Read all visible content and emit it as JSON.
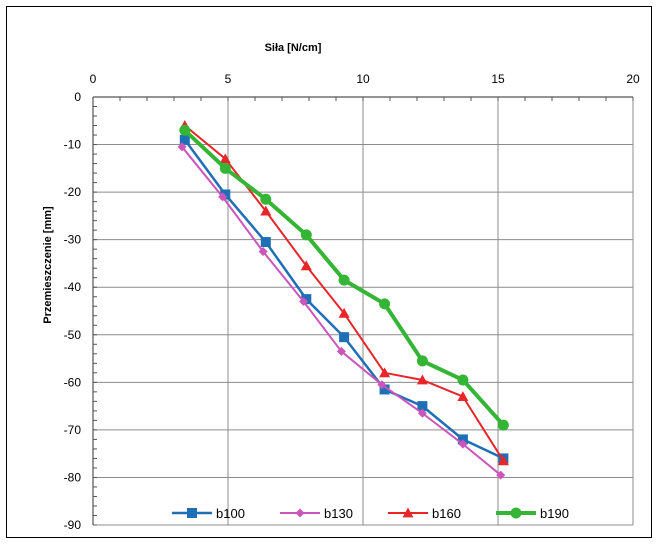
{
  "chart_data": {
    "type": "line",
    "title": "",
    "xlabel": "Siła [N/cm]",
    "ylabel": "Przemieszczenie [mm]",
    "xlim": [
      0,
      20
    ],
    "ylim": [
      -90,
      0
    ],
    "x_ticks": [
      0,
      5,
      10,
      15,
      20
    ],
    "y_ticks": [
      0,
      -10,
      -20,
      -30,
      -40,
      -50,
      -60,
      -70,
      -80,
      -90
    ],
    "x_axis_position": "top",
    "grid": true,
    "legend_position": "bottom",
    "series": [
      {
        "name": "b100",
        "color": "#1f6fb6",
        "marker": "square",
        "x": [
          3.4,
          4.9,
          6.4,
          7.9,
          9.3,
          10.8,
          12.2,
          13.7,
          15.2
        ],
        "y": [
          -9,
          -20.5,
          -30.5,
          -42.5,
          -50.5,
          -61.5,
          -65,
          -72,
          -76
        ]
      },
      {
        "name": "b130",
        "color": "#cc55bb",
        "marker": "diamond",
        "x": [
          3.3,
          4.8,
          6.3,
          7.8,
          9.2,
          10.7,
          12.2,
          13.7,
          15.1
        ],
        "y": [
          -10.5,
          -21,
          -32.5,
          -43,
          -53.5,
          -60.5,
          -66.5,
          -73,
          -79.5
        ]
      },
      {
        "name": "b160",
        "color": "#e8262a",
        "marker": "triangle",
        "x": [
          3.4,
          4.9,
          6.4,
          7.9,
          9.3,
          10.8,
          12.2,
          13.7,
          15.2
        ],
        "y": [
          -6,
          -13,
          -24,
          -35.5,
          -45.5,
          -58,
          -59.5,
          -63,
          -76.5
        ]
      },
      {
        "name": "b190",
        "color": "#35b535",
        "marker": "circle",
        "x": [
          3.4,
          4.9,
          6.4,
          7.9,
          9.3,
          10.8,
          12.2,
          13.7,
          15.2
        ],
        "y": [
          -7,
          -15,
          -21.5,
          -29,
          -38.5,
          -43.5,
          -55.5,
          -59.5,
          -69
        ]
      }
    ]
  }
}
